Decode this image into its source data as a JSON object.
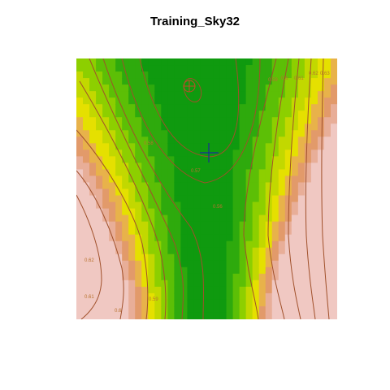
{
  "chart_data": {
    "type": "heatmap",
    "title": "Training_Sky32",
    "xlabel": "",
    "ylabel": "",
    "axes_shown": false,
    "grid": false,
    "legend": "none",
    "color_scale": [
      "#0f9a0f",
      "#2eaa0d",
      "#5cbf06",
      "#8dcf00",
      "#c2d800",
      "#e5e000",
      "#e8b24a",
      "#e29a6a",
      "#e8ae98",
      "#f0c8c2"
    ],
    "contour_color": "#a0502a",
    "marker_minimum_color": "#1a2a9a",
    "marker_other_color": "#c24a2a",
    "contour_labels": [
      {
        "text": "0.56"
      },
      {
        "text": "0.57"
      },
      {
        "text": "0.58"
      },
      {
        "text": "0.59"
      },
      {
        "text": "0.6"
      },
      {
        "text": "0.61"
      },
      {
        "text": "0.62"
      },
      {
        "text": "0.59"
      },
      {
        "text": "0.6"
      },
      {
        "text": "0.61"
      },
      {
        "text": "0.62"
      },
      {
        "text": "0.63"
      }
    ],
    "markers": [
      {
        "name": "center-plus",
        "symbol": "+"
      },
      {
        "name": "circle-plus",
        "symbol": "⊕"
      }
    ]
  }
}
